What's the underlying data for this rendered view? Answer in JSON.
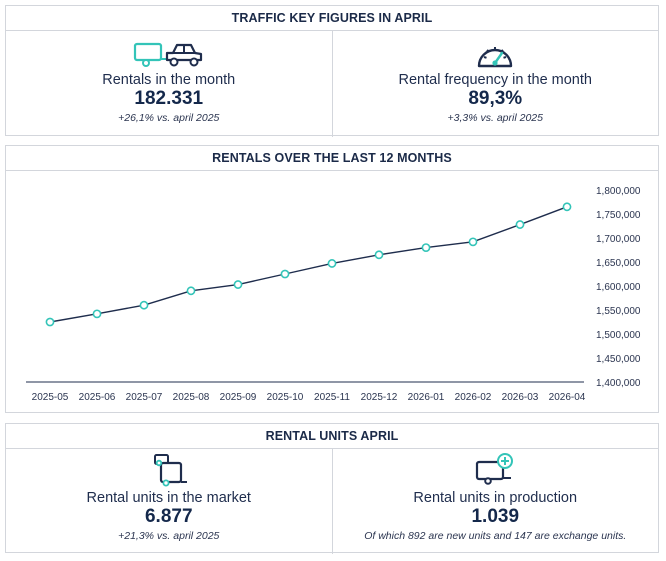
{
  "traffic": {
    "title": "TRAFFIC KEY FIGURES IN APRIL",
    "rentals": {
      "icon": "truck-with-trailer-icon",
      "label": "Rentals in the month",
      "value": "182.331",
      "note": "+26,1% vs. april 2025"
    },
    "frequency": {
      "icon": "speedometer-icon",
      "label": "Rental frequency in the month",
      "value": "89,3%",
      "note": "+3,3% vs. april 2025"
    }
  },
  "chart_data": {
    "type": "line",
    "title": "RENTALS OVER THE LAST 12 MONTHS",
    "categories": [
      "2025-05",
      "2025-06",
      "2025-07",
      "2025-08",
      "2025-09",
      "2025-10",
      "2025-11",
      "2025-12",
      "2026-01",
      "2026-02",
      "2026-03",
      "2026-04"
    ],
    "values": [
      1525000,
      1542000,
      1560000,
      1590000,
      1603000,
      1625000,
      1647000,
      1665000,
      1680000,
      1692000,
      1728000,
      1765000
    ],
    "ylim": [
      1400000,
      1800000
    ],
    "yticks": [
      "1,400,000",
      "1,450,000",
      "1,500,000",
      "1,550,000",
      "1,600,000",
      "1,650,000",
      "1,700,000",
      "1,750,000",
      "1,800,000"
    ],
    "ytick_values": [
      1400000,
      1450000,
      1500000,
      1550000,
      1600000,
      1650000,
      1700000,
      1750000,
      1800000
    ],
    "y_axis_side": "right",
    "grid": false,
    "line_color": "#1f2d4d",
    "marker_color": "#33c4b8"
  },
  "units": {
    "title": "RENTAL UNITS APRIL",
    "market": {
      "icon": "trailer-units-icon",
      "label": "Rental units in the market",
      "value": "6.877",
      "note": "+21,3% vs. april 2025"
    },
    "production": {
      "icon": "trailer-add-icon",
      "label": "Rental units in production",
      "value": "1.039",
      "note": "Of which 892 are new units and 147 are exchange units."
    }
  },
  "colors": {
    "accent": "#33c4b8",
    "navy": "#1f2d4d",
    "border": "#d3d6dc"
  }
}
